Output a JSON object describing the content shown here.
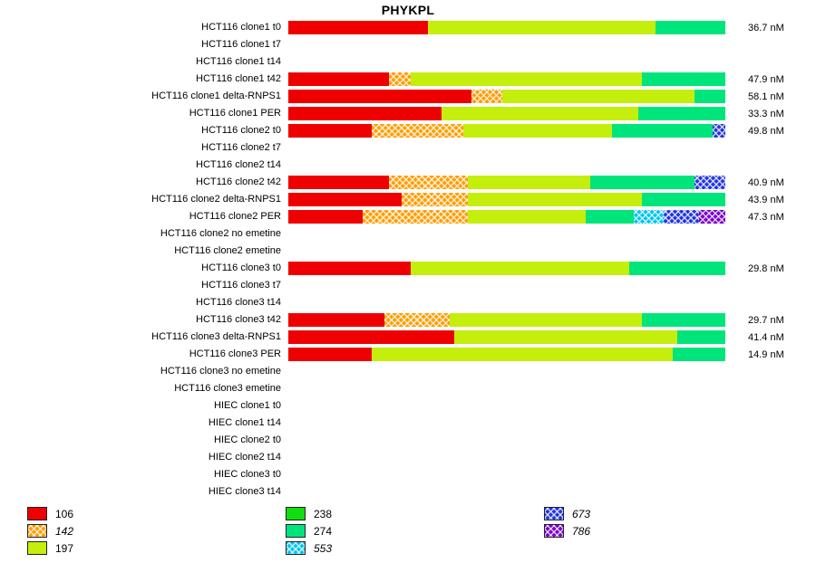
{
  "chart_data": {
    "type": "bar",
    "orientation": "horizontal",
    "stacked": true,
    "title": "PHYKPL",
    "value_unit": "nM",
    "palette": {
      "106": {
        "color": "#ee0000",
        "pattern": "solid",
        "italic": false
      },
      "142": {
        "color": "#ff9d00",
        "pattern": "crosshatch",
        "italic": true
      },
      "197": {
        "color": "#c4ee0c",
        "pattern": "solid",
        "italic": false
      },
      "238": {
        "color": "#12dd12",
        "pattern": "solid",
        "italic": false
      },
      "274": {
        "color": "#00e47c",
        "pattern": "solid",
        "italic": false
      },
      "553": {
        "color": "#00c4f2",
        "pattern": "crosshatch",
        "italic": true
      },
      "673": {
        "color": "#2236e0",
        "pattern": "crosshatch",
        "italic": true
      },
      "786": {
        "color": "#7a00cc",
        "pattern": "crosshatch",
        "italic": true
      }
    },
    "legend_columns": [
      [
        "106",
        "142",
        "197"
      ],
      [
        "238",
        "274",
        "553"
      ],
      [
        "673",
        "786"
      ]
    ],
    "rows": [
      {
        "label": "HCT116 clone1 t0",
        "value": "36.7 nM",
        "segments": [
          {
            "key": "106",
            "pct": 32
          },
          {
            "key": "197",
            "pct": 52
          },
          {
            "key": "274",
            "pct": 16
          }
        ]
      },
      {
        "label": "HCT116 clone1 t7",
        "value": "",
        "segments": []
      },
      {
        "label": "HCT116 clone1 t14",
        "value": "",
        "segments": []
      },
      {
        "label": "HCT116 clone1 t42",
        "value": "47.9 nM",
        "segments": [
          {
            "key": "106",
            "pct": 23
          },
          {
            "key": "142",
            "pct": 5
          },
          {
            "key": "197",
            "pct": 53
          },
          {
            "key": "274",
            "pct": 19
          }
        ]
      },
      {
        "label": "HCT116 clone1 delta-RNPS1",
        "value": "58.1 nM",
        "segments": [
          {
            "key": "106",
            "pct": 42
          },
          {
            "key": "142",
            "pct": 7
          },
          {
            "key": "197",
            "pct": 44
          },
          {
            "key": "274",
            "pct": 7
          }
        ]
      },
      {
        "label": "HCT116 clone1 PER",
        "value": "33.3 nM",
        "segments": [
          {
            "key": "106",
            "pct": 35
          },
          {
            "key": "197",
            "pct": 45
          },
          {
            "key": "274",
            "pct": 20
          }
        ]
      },
      {
        "label": "HCT116 clone2 t0",
        "value": "49.8 nM",
        "segments": [
          {
            "key": "106",
            "pct": 19
          },
          {
            "key": "142",
            "pct": 21
          },
          {
            "key": "197",
            "pct": 34
          },
          {
            "key": "274",
            "pct": 23
          },
          {
            "key": "673",
            "pct": 3
          }
        ]
      },
      {
        "label": "HCT116 clone2 t7",
        "value": "",
        "segments": []
      },
      {
        "label": "HCT116 clone2 t14",
        "value": "",
        "segments": []
      },
      {
        "label": "HCT116 clone2 t42",
        "value": "40.9 nM",
        "segments": [
          {
            "key": "106",
            "pct": 23
          },
          {
            "key": "142",
            "pct": 18
          },
          {
            "key": "197",
            "pct": 28
          },
          {
            "key": "274",
            "pct": 24
          },
          {
            "key": "673",
            "pct": 7
          }
        ]
      },
      {
        "label": "HCT116 clone2 delta-RNPS1",
        "value": "43.9 nM",
        "segments": [
          {
            "key": "106",
            "pct": 26
          },
          {
            "key": "142",
            "pct": 15
          },
          {
            "key": "197",
            "pct": 40
          },
          {
            "key": "274",
            "pct": 19
          }
        ]
      },
      {
        "label": "HCT116 clone2 PER",
        "value": "47.3 nM",
        "segments": [
          {
            "key": "106",
            "pct": 17
          },
          {
            "key": "142",
            "pct": 24
          },
          {
            "key": "197",
            "pct": 27
          },
          {
            "key": "274",
            "pct": 11
          },
          {
            "key": "553",
            "pct": 7
          },
          {
            "key": "673",
            "pct": 8
          },
          {
            "key": "786",
            "pct": 6
          }
        ]
      },
      {
        "label": "HCT116 clone2 no emetine",
        "value": "",
        "segments": []
      },
      {
        "label": "HCT116 clone2 emetine",
        "value": "",
        "segments": []
      },
      {
        "label": "HCT116 clone3 t0",
        "value": "29.8 nM",
        "segments": [
          {
            "key": "106",
            "pct": 28
          },
          {
            "key": "197",
            "pct": 50
          },
          {
            "key": "274",
            "pct": 22
          }
        ]
      },
      {
        "label": "HCT116 clone3 t7",
        "value": "",
        "segments": []
      },
      {
        "label": "HCT116 clone3 t14",
        "value": "",
        "segments": []
      },
      {
        "label": "HCT116 clone3 t42",
        "value": "29.7 nM",
        "segments": [
          {
            "key": "106",
            "pct": 22
          },
          {
            "key": "142",
            "pct": 15
          },
          {
            "key": "197",
            "pct": 44
          },
          {
            "key": "274",
            "pct": 19
          }
        ]
      },
      {
        "label": "HCT116 clone3 delta-RNPS1",
        "value": "41.4 nM",
        "segments": [
          {
            "key": "106",
            "pct": 38
          },
          {
            "key": "197",
            "pct": 51
          },
          {
            "key": "274",
            "pct": 11
          }
        ]
      },
      {
        "label": "HCT116 clone3 PER",
        "value": "14.9 nM",
        "segments": [
          {
            "key": "106",
            "pct": 19
          },
          {
            "key": "197",
            "pct": 69
          },
          {
            "key": "274",
            "pct": 12
          }
        ]
      },
      {
        "label": "HCT116 clone3 no emetine",
        "value": "",
        "segments": []
      },
      {
        "label": "HCT116 clone3 emetine",
        "value": "",
        "segments": []
      },
      {
        "label": "HIEC clone1 t0",
        "value": "",
        "segments": []
      },
      {
        "label": "HIEC clone1 t14",
        "value": "",
        "segments": []
      },
      {
        "label": "HIEC clone2 t0",
        "value": "",
        "segments": []
      },
      {
        "label": "HIEC clone2 t14",
        "value": "",
        "segments": []
      },
      {
        "label": "HIEC clone3 t0",
        "value": "",
        "segments": []
      },
      {
        "label": "HIEC clone3 t14",
        "value": "",
        "segments": []
      }
    ]
  }
}
